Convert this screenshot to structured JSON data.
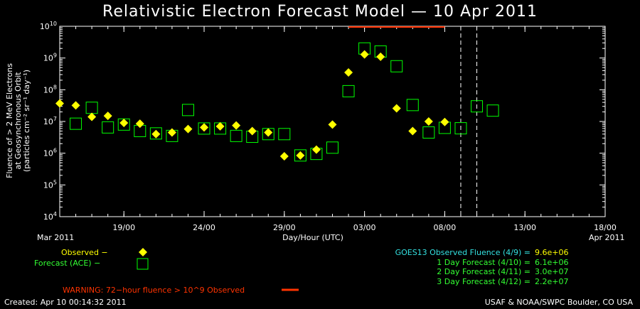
{
  "title": "Relativistic Electron Forecast Model — 10 Apr 2011",
  "ylabel": {
    "line1": "Fluence of > 2 MeV Electrons",
    "line2": "at Geosynchronous Orbit",
    "line3": "(particles cm⁻² sr⁻¹ day⁻¹)"
  },
  "xlabel": "Day/Hour (UTC)",
  "x_start_label": "Mar 2011",
  "x_end_label": "Apr 2011",
  "legend": {
    "observed": "Observed −",
    "forecast": "Forecast (ACE) −"
  },
  "warning": "WARNING: 72−hour fluence > 10^9 Observed",
  "fluence_summary": [
    {
      "label": "GOES13 Observed Fluence (4/9) =",
      "value": "9.6e+06"
    },
    {
      "label": "1 Day Forecast (4/10) =",
      "value": "6.1e+06"
    },
    {
      "label": "2 Day Forecast (4/11) =",
      "value": "3.0e+07"
    },
    {
      "label": "3 Day Forecast (4/12) =",
      "value": "2.2e+07"
    }
  ],
  "footer_left": "Created: Apr 10 00:14:32 2011",
  "footer_right": "USAF & NOAA/SWPC Boulder, CO USA",
  "colors": {
    "observed": "#ffff00",
    "forecast": "#00ff00",
    "warning": "#ff3300",
    "summary_header": "#33e0e0",
    "summary_values": "#33ff33"
  },
  "chart_data": {
    "type": "scatter",
    "title": "Relativistic Electron Forecast Model — 10 Apr 2011",
    "xlabel": "Day/Hour (UTC)",
    "ylabel": "Fluence of > 2 MeV Electrons at Geosynchronous Orbit (particles cm-2 sr-1 day-1)",
    "yscale": "log",
    "xlim": [
      "2011-03-15",
      "2011-04-18"
    ],
    "ylim": [
      10000,
      10000000000
    ],
    "x_tick_labels": [
      "19/00",
      "24/00",
      "29/00",
      "03/00",
      "08/00",
      "13/00",
      "18/00"
    ],
    "x_ticks": [
      "2011-03-19",
      "2011-03-24",
      "2011-03-29",
      "2011-04-03",
      "2011-04-08",
      "2011-04-13",
      "2011-04-18"
    ],
    "y_ticks": [
      10000,
      100000,
      1000000,
      10000000,
      100000000,
      1000000000,
      10000000000
    ],
    "y_tick_labels": [
      {
        "base": "10",
        "exp": "4"
      },
      {
        "base": "10",
        "exp": "5"
      },
      {
        "base": "10",
        "exp": "6"
      },
      {
        "base": "10",
        "exp": "7"
      },
      {
        "base": "10",
        "exp": "8"
      },
      {
        "base": "10",
        "exp": "9"
      },
      {
        "base": "10",
        "exp": "10"
      }
    ],
    "vertical_dashed_lines": [
      "2011-04-09",
      "2011-04-10"
    ],
    "warning_bar": {
      "x_start": "2011-04-02",
      "x_end": "2011-04-08",
      "y": 10000000000
    },
    "series": [
      {
        "name": "Observed",
        "marker": "diamond",
        "points": [
          {
            "x": "2011-03-15",
            "y": 37000000
          },
          {
            "x": "2011-03-16",
            "y": 32000000
          },
          {
            "x": "2011-03-17",
            "y": 14000000
          },
          {
            "x": "2011-03-18",
            "y": 15000000
          },
          {
            "x": "2011-03-19",
            "y": 9000000
          },
          {
            "x": "2011-03-20",
            "y": 8500000
          },
          {
            "x": "2011-03-21",
            "y": 4000000
          },
          {
            "x": "2011-03-22",
            "y": 4500000
          },
          {
            "x": "2011-03-23",
            "y": 5800000
          },
          {
            "x": "2011-03-24",
            "y": 6500000
          },
          {
            "x": "2011-03-25",
            "y": 7000000
          },
          {
            "x": "2011-03-26",
            "y": 7500000
          },
          {
            "x": "2011-03-27",
            "y": 5000000
          },
          {
            "x": "2011-03-28",
            "y": 4500000
          },
          {
            "x": "2011-03-29",
            "y": 800000
          },
          {
            "x": "2011-03-30",
            "y": 850000
          },
          {
            "x": "2011-03-31",
            "y": 1300000
          },
          {
            "x": "2011-04-01",
            "y": 8000000
          },
          {
            "x": "2011-04-02",
            "y": 350000000
          },
          {
            "x": "2011-04-03",
            "y": 1300000000
          },
          {
            "x": "2011-04-04",
            "y": 1100000000
          },
          {
            "x": "2011-04-05",
            "y": 26000000
          },
          {
            "x": "2011-04-06",
            "y": 5000000
          },
          {
            "x": "2011-04-07",
            "y": 10000000
          },
          {
            "x": "2011-04-08",
            "y": 9600000
          }
        ]
      },
      {
        "name": "Forecast (ACE)",
        "marker": "square",
        "points": [
          {
            "x": "2011-03-16",
            "y": 8500000
          },
          {
            "x": "2011-03-17",
            "y": 27000000
          },
          {
            "x": "2011-03-18",
            "y": 6500000
          },
          {
            "x": "2011-03-19",
            "y": 8000000
          },
          {
            "x": "2011-03-20",
            "y": 5000000
          },
          {
            "x": "2011-03-21",
            "y": 4200000
          },
          {
            "x": "2011-03-22",
            "y": 3500000
          },
          {
            "x": "2011-03-23",
            "y": 23000000
          },
          {
            "x": "2011-03-24",
            "y": 6000000
          },
          {
            "x": "2011-03-25",
            "y": 6000000
          },
          {
            "x": "2011-03-26",
            "y": 3500000
          },
          {
            "x": "2011-03-27",
            "y": 3300000
          },
          {
            "x": "2011-03-28",
            "y": 4000000
          },
          {
            "x": "2011-03-29",
            "y": 4000000
          },
          {
            "x": "2011-03-30",
            "y": 850000
          },
          {
            "x": "2011-03-31",
            "y": 950000
          },
          {
            "x": "2011-04-01",
            "y": 1500000
          },
          {
            "x": "2011-04-02",
            "y": 90000000
          },
          {
            "x": "2011-04-03",
            "y": 2000000000
          },
          {
            "x": "2011-04-04",
            "y": 1600000000
          },
          {
            "x": "2011-04-05",
            "y": 550000000
          },
          {
            "x": "2011-04-06",
            "y": 33000000
          },
          {
            "x": "2011-04-07",
            "y": 4500000
          },
          {
            "x": "2011-04-08",
            "y": 6300000
          },
          {
            "x": "2011-04-09",
            "y": 6100000
          },
          {
            "x": "2011-04-10",
            "y": 30000000
          },
          {
            "x": "2011-04-11",
            "y": 22000000
          }
        ]
      }
    ]
  }
}
